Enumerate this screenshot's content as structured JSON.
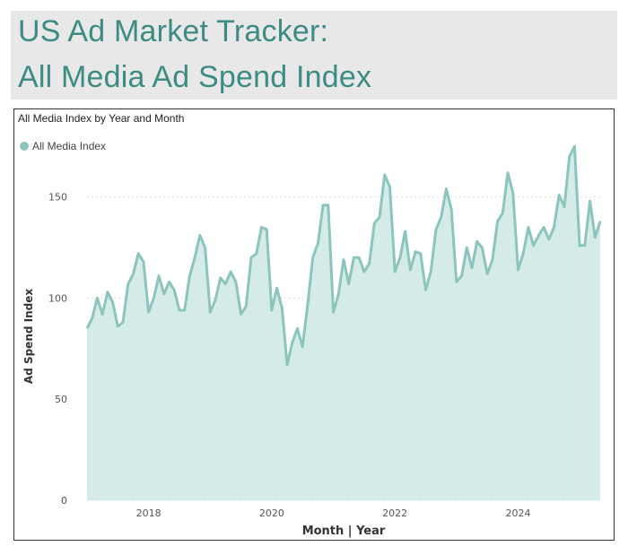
{
  "header": {
    "title_line1": "US Ad Market Tracker:",
    "title_line2": "All Media Ad Spend Index"
  },
  "colors": {
    "accent": "#3d8c84",
    "header_bg": "#e8e8e8",
    "line": "#8cc5bd",
    "area": "#d4ebe7",
    "grid": "#dddddd"
  },
  "chart_data": {
    "type": "area",
    "title": "All Media Index by Year and Month",
    "xlabel": "Month | Year",
    "ylabel": "Ad Spend Index",
    "ylim": [
      0,
      180
    ],
    "yticks": [
      0,
      50,
      100,
      150
    ],
    "xticks": [
      "2018",
      "2020",
      "2022",
      "2024"
    ],
    "grid": true,
    "legend_position": "top-left",
    "x_start": "2017-01",
    "x_end": "2025-05",
    "series": [
      {
        "name": "All Media Index",
        "values": [
          85,
          90,
          100,
          92,
          103,
          98,
          86,
          88,
          107,
          112,
          122,
          118,
          93,
          100,
          111,
          102,
          108,
          104,
          94,
          94,
          111,
          120,
          131,
          125,
          93,
          99,
          110,
          107,
          113,
          108,
          92,
          96,
          120,
          122,
          135,
          134,
          94,
          105,
          95,
          67,
          78,
          85,
          76,
          97,
          120,
          127,
          146,
          146,
          93,
          102,
          119,
          107,
          120,
          120,
          113,
          117,
          137,
          140,
          161,
          155,
          113,
          120,
          133,
          114,
          123,
          122,
          104,
          113,
          134,
          140,
          154,
          144,
          108,
          111,
          125,
          115,
          128,
          125,
          112,
          119,
          138,
          142,
          162,
          152,
          114,
          122,
          135,
          126,
          131,
          135,
          129,
          135,
          151,
          145,
          170,
          175,
          126,
          126,
          148,
          130,
          138
        ]
      }
    ]
  }
}
